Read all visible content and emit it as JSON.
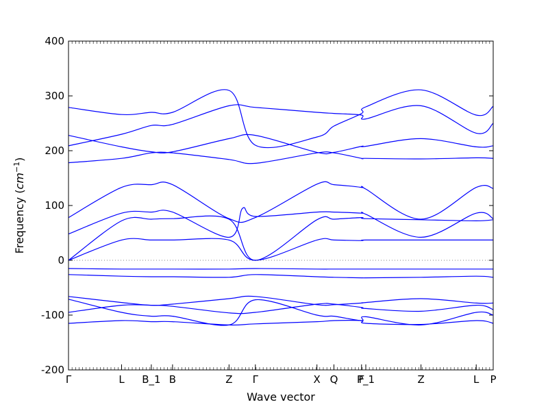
{
  "chart_data": {
    "type": "line",
    "xlabel": "Wave vector",
    "ylabel_prefix": "Frequency (",
    "ylabel_unit": "cm",
    "ylabel_exp": "−1",
    "ylabel_suffix": ")",
    "ylim": [
      -200,
      400
    ],
    "yticks": [
      -200,
      -100,
      0,
      100,
      200,
      300,
      400
    ],
    "xlim": [
      0,
      1
    ],
    "xticks": [
      {
        "x": 0.0,
        "label": "Γ"
      },
      {
        "x": 0.125,
        "label": "L"
      },
      {
        "x": 0.195,
        "label": "B_1"
      },
      {
        "x": 0.245,
        "label": "B"
      },
      {
        "x": 0.378,
        "label": "Z"
      },
      {
        "x": 0.44,
        "label": "Γ"
      },
      {
        "x": 0.585,
        "label": "X"
      },
      {
        "x": 0.625,
        "label": "Q"
      },
      {
        "x": 0.69,
        "label": "F"
      },
      {
        "x": 0.7,
        "label": "P_1"
      },
      {
        "x": 0.83,
        "label": "Z"
      },
      {
        "x": 0.96,
        "label": "L"
      },
      {
        "x": 1.0,
        "label": "P"
      }
    ],
    "zero_line": true,
    "line_color": "#0000ff",
    "series": [
      {
        "x": [
          0,
          0.125,
          0.195,
          0.245,
          0.378,
          0.44,
          0.585,
          0.625,
          0.69,
          0.7,
          0.83,
          0.96,
          1.0
        ],
        "y": [
          279,
          266,
          270,
          270,
          310,
          210,
          225,
          245,
          268,
          280,
          311,
          265,
          281
        ]
      },
      {
        "x": [
          0,
          0.125,
          0.195,
          0.245,
          0.378,
          0.44,
          0.585,
          0.625,
          0.69,
          0.7,
          0.83,
          0.96,
          1.0
        ],
        "y": [
          209,
          230,
          246,
          248,
          282,
          279,
          270,
          268,
          265,
          258,
          282,
          232,
          250
        ]
      },
      {
        "x": [
          0,
          0.125,
          0.195,
          0.245,
          0.378,
          0.44,
          0.585,
          0.625,
          0.69,
          0.7,
          0.83,
          0.96,
          1.0
        ],
        "y": [
          228,
          207,
          198,
          198,
          222,
          228,
          197,
          197,
          208,
          208,
          222,
          207,
          209
        ]
      },
      {
        "x": [
          0,
          0.125,
          0.195,
          0.245,
          0.378,
          0.44,
          0.585,
          0.625,
          0.69,
          0.7,
          0.83,
          0.96,
          1.0
        ],
        "y": [
          178,
          186,
          196,
          196,
          184,
          177,
          196,
          196,
          186,
          186,
          185,
          187,
          186
        ]
      },
      {
        "x": [
          0,
          0.125,
          0.195,
          0.245,
          0.378,
          0.44,
          0.585,
          0.625,
          0.69,
          0.7,
          0.83,
          0.96,
          1.0
        ],
        "y": [
          78,
          133,
          138,
          138,
          76,
          78,
          139,
          138,
          133,
          130,
          75,
          133,
          131
        ]
      },
      {
        "x": [
          0,
          0.125,
          0.195,
          0.245,
          0.378,
          0.41,
          0.44,
          0.585,
          0.625,
          0.69,
          0.7,
          0.83,
          0.96,
          1.0
        ],
        "y": [
          48,
          86,
          88,
          88,
          42,
          95,
          80,
          88,
          88,
          86,
          84,
          42,
          86,
          76
        ]
      },
      {
        "x": [
          0,
          0.125,
          0.195,
          0.245,
          0.378,
          0.44,
          0.585,
          0.625,
          0.69,
          0.7,
          0.83,
          0.96,
          1.0
        ],
        "y": [
          0,
          72,
          75,
          76,
          75,
          0,
          74,
          75,
          78,
          76,
          74,
          72,
          74
        ]
      },
      {
        "x": [
          0,
          0.125,
          0.195,
          0.245,
          0.378,
          0.44,
          0.585,
          0.625,
          0.69,
          0.7,
          0.83,
          0.96,
          1.0
        ],
        "y": [
          0,
          37,
          37,
          37,
          37,
          0,
          37,
          37,
          36,
          37,
          37,
          37,
          37
        ]
      },
      {
        "x": [
          0,
          0.125,
          0.195,
          0.245,
          0.378,
          0.44,
          0.585,
          0.625,
          0.69,
          0.7,
          0.83,
          0.96,
          1.0
        ],
        "y": [
          -15,
          -16,
          -16,
          -16,
          -16,
          -15,
          -16,
          -16,
          -16,
          -16,
          -16,
          -16,
          -16
        ]
      },
      {
        "x": [
          0,
          0.125,
          0.195,
          0.245,
          0.378,
          0.44,
          0.585,
          0.625,
          0.69,
          0.7,
          0.83,
          0.96,
          1.0
        ],
        "y": [
          -26,
          -29,
          -30,
          -30,
          -31,
          -26,
          -30,
          -31,
          -32,
          -32,
          -31,
          -29,
          -31
        ]
      },
      {
        "x": [
          0,
          0.125,
          0.195,
          0.245,
          0.378,
          0.44,
          0.585,
          0.625,
          0.69,
          0.7,
          0.83,
          0.96,
          1.0
        ],
        "y": [
          -66,
          -77,
          -82,
          -80,
          -70,
          -66,
          -81,
          -81,
          -78,
          -77,
          -70,
          -78,
          -78
        ]
      },
      {
        "x": [
          0,
          0.125,
          0.195,
          0.245,
          0.378,
          0.44,
          0.585,
          0.625,
          0.69,
          0.7,
          0.83,
          0.96,
          1.0
        ],
        "y": [
          -71,
          -95,
          -102,
          -102,
          -118,
          -72,
          -100,
          -102,
          -110,
          -103,
          -118,
          -95,
          -100
        ]
      },
      {
        "x": [
          0,
          0.125,
          0.195,
          0.245,
          0.378,
          0.44,
          0.585,
          0.625,
          0.69,
          0.7,
          0.83,
          0.96,
          1.0
        ],
        "y": [
          -95,
          -82,
          -82,
          -84,
          -96,
          -95,
          -80,
          -80,
          -86,
          -88,
          -93,
          -82,
          -90
        ]
      },
      {
        "x": [
          0,
          0.125,
          0.195,
          0.245,
          0.378,
          0.44,
          0.585,
          0.625,
          0.69,
          0.7,
          0.83,
          0.96,
          1.0
        ],
        "y": [
          -115,
          -110,
          -112,
          -112,
          -118,
          -116,
          -112,
          -110,
          -110,
          -115,
          -117,
          -110,
          -115
        ]
      }
    ]
  }
}
